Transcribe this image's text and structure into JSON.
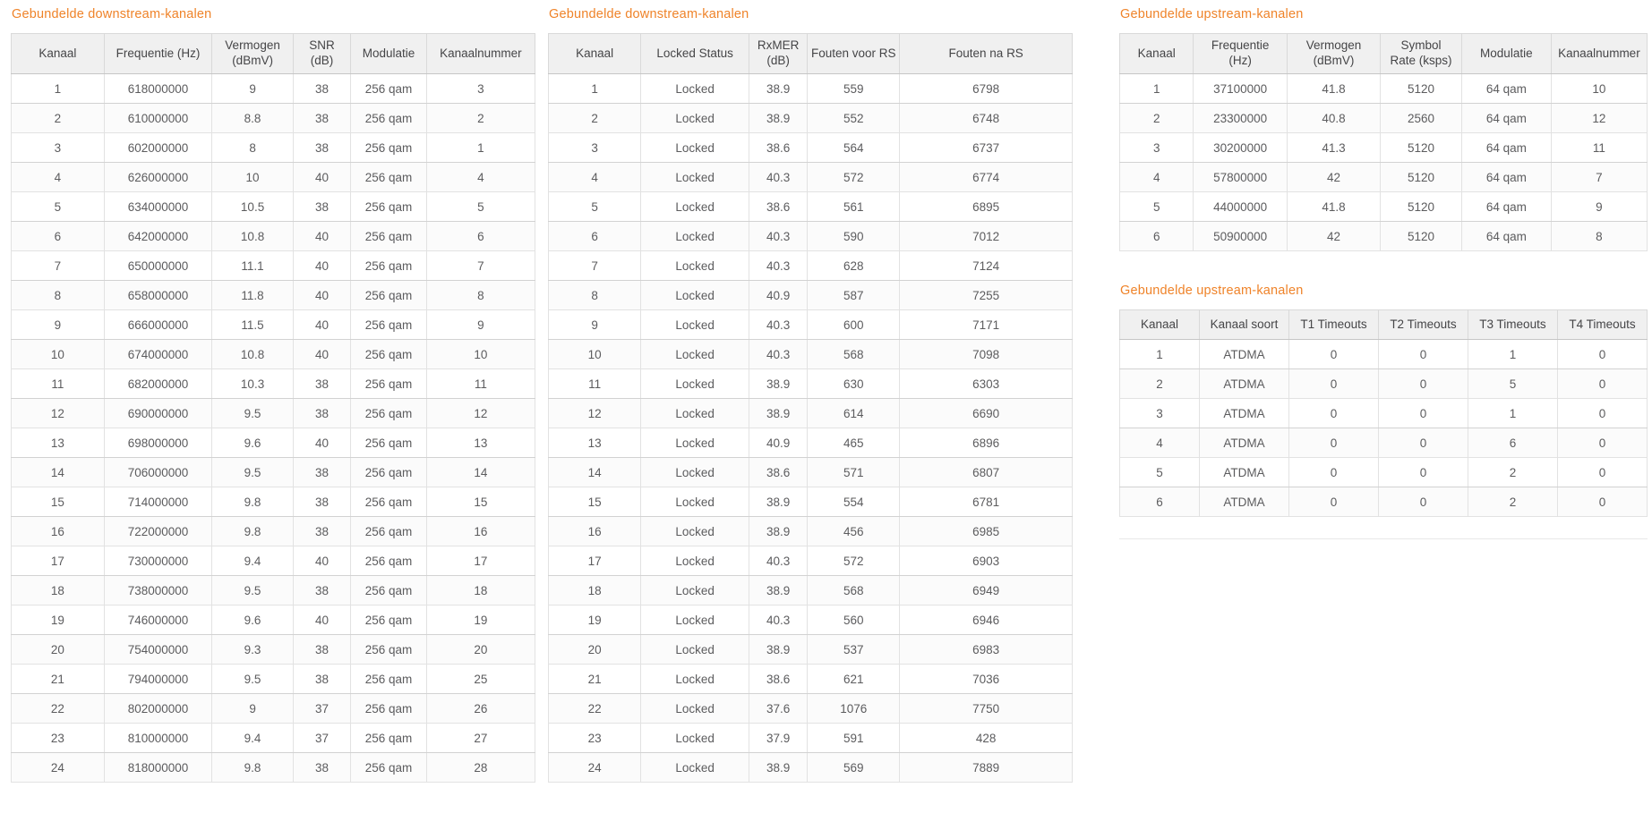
{
  "accent_color": "#ef8329",
  "header_bg_color": "#f0f0f0",
  "tables": [
    {
      "title": "Gebundelde downstream-kanalen",
      "headers": [
        "Kanaal",
        "Frequentie (Hz)",
        "Vermogen\n(dBmV)",
        "SNR\n(dB)",
        "Modulatie",
        "Kanaalnummer"
      ],
      "rows": [
        [
          "1",
          "618000000",
          "9",
          "38",
          "256 qam",
          "3"
        ],
        [
          "2",
          "610000000",
          "8.8",
          "38",
          "256 qam",
          "2"
        ],
        [
          "3",
          "602000000",
          "8",
          "38",
          "256 qam",
          "1"
        ],
        [
          "4",
          "626000000",
          "10",
          "40",
          "256 qam",
          "4"
        ],
        [
          "5",
          "634000000",
          "10.5",
          "38",
          "256 qam",
          "5"
        ],
        [
          "6",
          "642000000",
          "10.8",
          "40",
          "256 qam",
          "6"
        ],
        [
          "7",
          "650000000",
          "11.1",
          "40",
          "256 qam",
          "7"
        ],
        [
          "8",
          "658000000",
          "11.8",
          "40",
          "256 qam",
          "8"
        ],
        [
          "9",
          "666000000",
          "11.5",
          "40",
          "256 qam",
          "9"
        ],
        [
          "10",
          "674000000",
          "10.8",
          "40",
          "256 qam",
          "10"
        ],
        [
          "11",
          "682000000",
          "10.3",
          "38",
          "256 qam",
          "11"
        ],
        [
          "12",
          "690000000",
          "9.5",
          "38",
          "256 qam",
          "12"
        ],
        [
          "13",
          "698000000",
          "9.6",
          "40",
          "256 qam",
          "13"
        ],
        [
          "14",
          "706000000",
          "9.5",
          "38",
          "256 qam",
          "14"
        ],
        [
          "15",
          "714000000",
          "9.8",
          "38",
          "256 qam",
          "15"
        ],
        [
          "16",
          "722000000",
          "9.8",
          "38",
          "256 qam",
          "16"
        ],
        [
          "17",
          "730000000",
          "9.4",
          "40",
          "256 qam",
          "17"
        ],
        [
          "18",
          "738000000",
          "9.5",
          "38",
          "256 qam",
          "18"
        ],
        [
          "19",
          "746000000",
          "9.6",
          "40",
          "256 qam",
          "19"
        ],
        [
          "20",
          "754000000",
          "9.3",
          "38",
          "256 qam",
          "20"
        ],
        [
          "21",
          "794000000",
          "9.5",
          "38",
          "256 qam",
          "25"
        ],
        [
          "22",
          "802000000",
          "9",
          "37",
          "256 qam",
          "26"
        ],
        [
          "23",
          "810000000",
          "9.4",
          "37",
          "256 qam",
          "27"
        ],
        [
          "24",
          "818000000",
          "9.8",
          "38",
          "256 qam",
          "28"
        ]
      ]
    },
    {
      "title": "Gebundelde downstream-kanalen",
      "headers": [
        "Kanaal",
        "Locked Status",
        "RxMER\n(dB)",
        "Fouten voor RS",
        "Fouten na RS"
      ],
      "rows": [
        [
          "1",
          "Locked",
          "38.9",
          "559",
          "6798"
        ],
        [
          "2",
          "Locked",
          "38.9",
          "552",
          "6748"
        ],
        [
          "3",
          "Locked",
          "38.6",
          "564",
          "6737"
        ],
        [
          "4",
          "Locked",
          "40.3",
          "572",
          "6774"
        ],
        [
          "5",
          "Locked",
          "38.6",
          "561",
          "6895"
        ],
        [
          "6",
          "Locked",
          "40.3",
          "590",
          "7012"
        ],
        [
          "7",
          "Locked",
          "40.3",
          "628",
          "7124"
        ],
        [
          "8",
          "Locked",
          "40.9",
          "587",
          "7255"
        ],
        [
          "9",
          "Locked",
          "40.3",
          "600",
          "7171"
        ],
        [
          "10",
          "Locked",
          "40.3",
          "568",
          "7098"
        ],
        [
          "11",
          "Locked",
          "38.9",
          "630",
          "6303"
        ],
        [
          "12",
          "Locked",
          "38.9",
          "614",
          "6690"
        ],
        [
          "13",
          "Locked",
          "40.9",
          "465",
          "6896"
        ],
        [
          "14",
          "Locked",
          "38.6",
          "571",
          "6807"
        ],
        [
          "15",
          "Locked",
          "38.9",
          "554",
          "6781"
        ],
        [
          "16",
          "Locked",
          "38.9",
          "456",
          "6985"
        ],
        [
          "17",
          "Locked",
          "40.3",
          "572",
          "6903"
        ],
        [
          "18",
          "Locked",
          "38.9",
          "568",
          "6949"
        ],
        [
          "19",
          "Locked",
          "40.3",
          "560",
          "6946"
        ],
        [
          "20",
          "Locked",
          "38.9",
          "537",
          "6983"
        ],
        [
          "21",
          "Locked",
          "38.6",
          "621",
          "7036"
        ],
        [
          "22",
          "Locked",
          "37.6",
          "1076",
          "7750"
        ],
        [
          "23",
          "Locked",
          "37.9",
          "591",
          "428"
        ],
        [
          "24",
          "Locked",
          "38.9",
          "569",
          "7889"
        ]
      ]
    },
    {
      "title": "Gebundelde upstream-kanalen",
      "headers": [
        "Kanaal",
        "Frequentie\n(Hz)",
        "Vermogen\n(dBmV)",
        "Symbol\nRate (ksps)",
        "Modulatie",
        "Kanaalnummer"
      ],
      "rows": [
        [
          "1",
          "37100000",
          "41.8",
          "5120",
          "64 qam",
          "10"
        ],
        [
          "2",
          "23300000",
          "40.8",
          "2560",
          "64 qam",
          "12"
        ],
        [
          "3",
          "30200000",
          "41.3",
          "5120",
          "64 qam",
          "11"
        ],
        [
          "4",
          "57800000",
          "42",
          "5120",
          "64 qam",
          "7"
        ],
        [
          "5",
          "44000000",
          "41.8",
          "5120",
          "64 qam",
          "9"
        ],
        [
          "6",
          "50900000",
          "42",
          "5120",
          "64 qam",
          "8"
        ]
      ]
    },
    {
      "title": "Gebundelde upstream-kanalen",
      "headers": [
        "Kanaal",
        "Kanaal soort",
        "T1 Timeouts",
        "T2 Timeouts",
        "T3 Timeouts",
        "T4 Timeouts"
      ],
      "rows": [
        [
          "1",
          "ATDMA",
          "0",
          "0",
          "1",
          "0"
        ],
        [
          "2",
          "ATDMA",
          "0",
          "0",
          "5",
          "0"
        ],
        [
          "3",
          "ATDMA",
          "0",
          "0",
          "1",
          "0"
        ],
        [
          "4",
          "ATDMA",
          "0",
          "0",
          "6",
          "0"
        ],
        [
          "5",
          "ATDMA",
          "0",
          "0",
          "2",
          "0"
        ],
        [
          "6",
          "ATDMA",
          "0",
          "0",
          "2",
          "0"
        ]
      ]
    }
  ]
}
